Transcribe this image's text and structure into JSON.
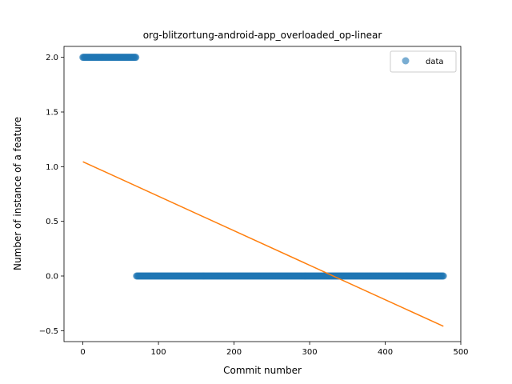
{
  "chart_data": {
    "type": "scatter",
    "title": "org-blitzortung-android-app_overloaded_op-linear",
    "xlabel": "Commit number",
    "ylabel": "Number of instance of a feature",
    "xlim": [
      -25,
      500
    ],
    "ylim": [
      -0.6,
      2.1
    ],
    "xticks": [
      0,
      100,
      200,
      300,
      400,
      500
    ],
    "yticks": [
      -0.5,
      0.0,
      0.5,
      1.0,
      1.5,
      2.0
    ],
    "xtick_labels": [
      "0",
      "100",
      "200",
      "300",
      "400",
      "500"
    ],
    "ytick_labels": [
      "−0.5",
      "0.0",
      "0.5",
      "1.0",
      "1.5",
      "2.0"
    ],
    "grid": false,
    "legend": {
      "placement": "top-right",
      "entries": [
        "data"
      ]
    },
    "series": [
      {
        "name": "data",
        "kind": "scatter",
        "color": "#1f77b4",
        "segments": [
          {
            "x_start": 0,
            "x_end": 70,
            "y": 2
          },
          {
            "x_start": 71,
            "x_end": 477,
            "y": 0
          }
        ]
      },
      {
        "kind": "line",
        "color": "#ff7f0e",
        "points": [
          [
            0,
            1.045
          ],
          [
            477,
            -0.46
          ]
        ]
      }
    ]
  }
}
